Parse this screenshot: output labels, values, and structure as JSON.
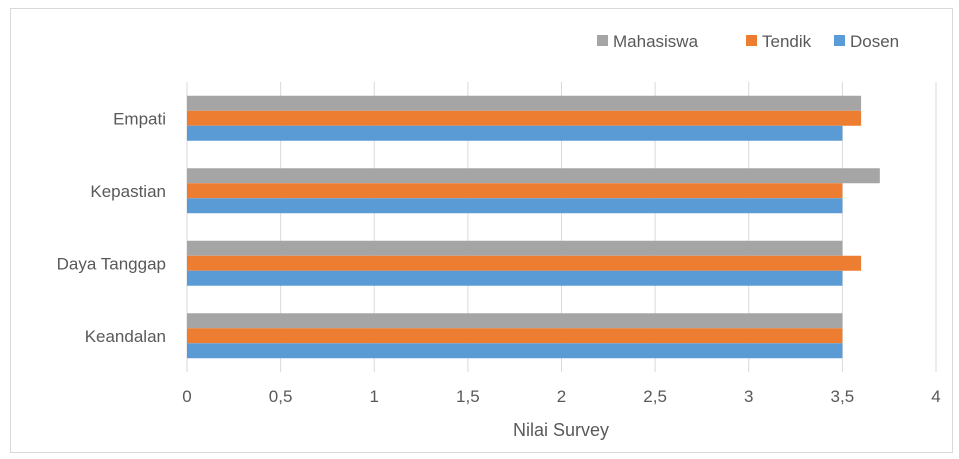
{
  "chart_data": {
    "type": "bar",
    "orientation": "horizontal",
    "categories": [
      "Empati",
      "Kepastian",
      "Daya Tanggap",
      "Keandalan"
    ],
    "series": [
      {
        "name": "Mahasiswa",
        "color": "#a5a5a5",
        "values": [
          3.6,
          3.7,
          3.5,
          3.5
        ]
      },
      {
        "name": "Tendik",
        "color": "#ed7d31",
        "values": [
          3.6,
          3.5,
          3.6,
          3.5
        ]
      },
      {
        "name": "Dosen",
        "color": "#5b9bd5",
        "values": [
          3.5,
          3.5,
          3.5,
          3.5
        ]
      }
    ],
    "xlabel": "Nilai Survey",
    "ylabel": "",
    "xlim": [
      0,
      4
    ],
    "xticks": [
      "0",
      "0,5",
      "1",
      "1,5",
      "2",
      "2,5",
      "3",
      "3,5",
      "4"
    ],
    "grid": "vertical",
    "legend": "top-right"
  }
}
